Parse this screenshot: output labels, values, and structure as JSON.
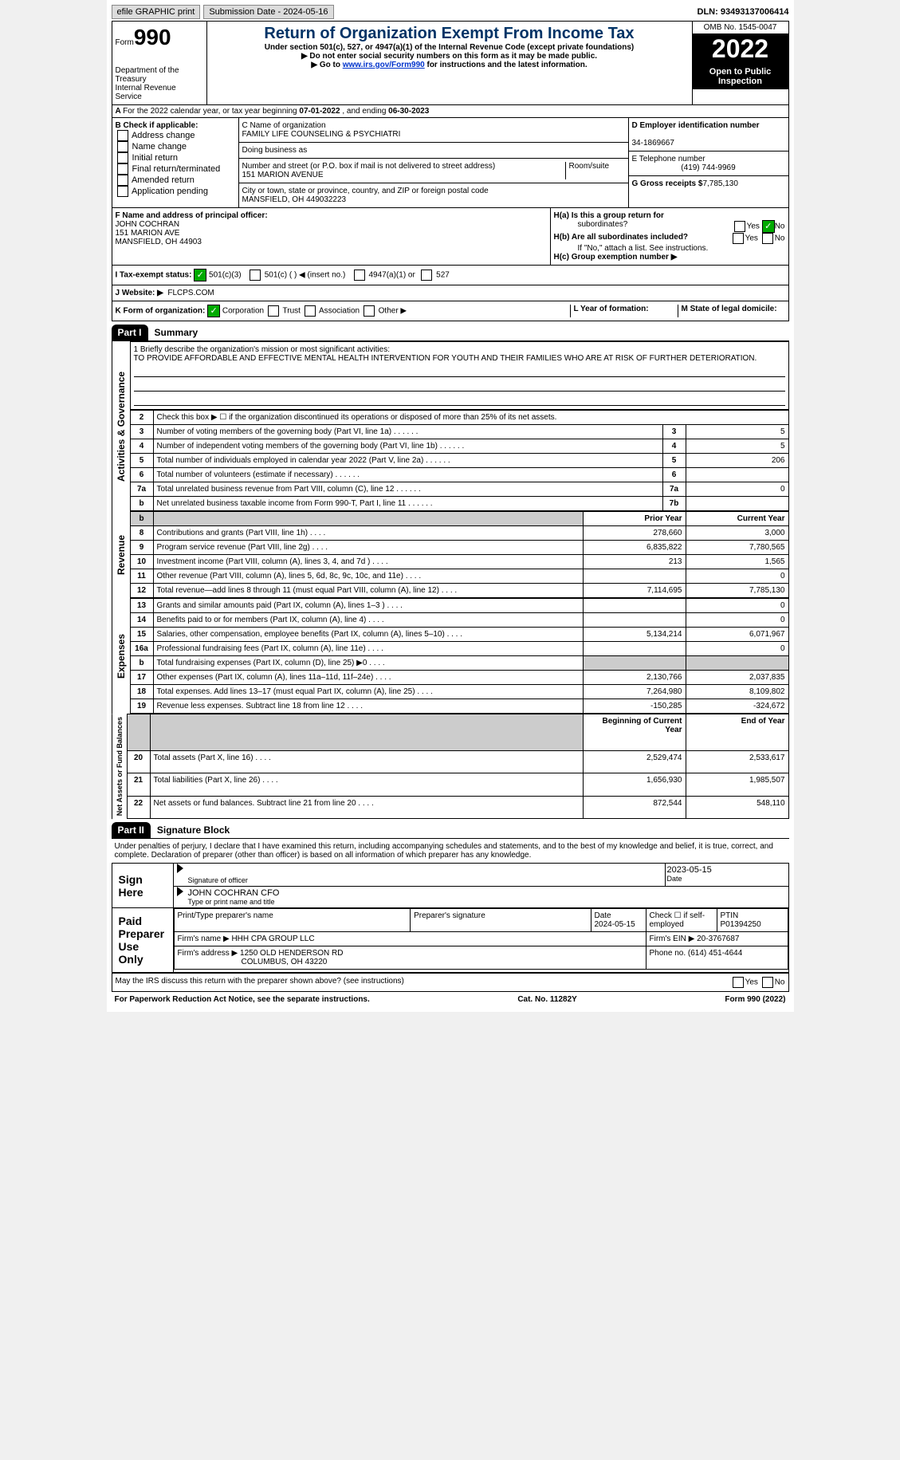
{
  "topbar": {
    "efile": "efile GRAPHIC print",
    "submission": "Submission Date - 2024-05-16",
    "dln": "DLN: 93493137006414"
  },
  "header": {
    "form": "Form",
    "num": "990",
    "dept": "Department of the Treasury",
    "irs": "Internal Revenue Service",
    "title": "Return of Organization Exempt From Income Tax",
    "sub1": "Under section 501(c), 527, or 4947(a)(1) of the Internal Revenue Code (except private foundations)",
    "sub2": "▶ Do not enter social security numbers on this form as it may be made public.",
    "sub3": "▶ Go to ",
    "link": "www.irs.gov/Form990",
    "sub3b": " for instructions and the latest information.",
    "omb": "OMB No. 1545-0047",
    "year": "2022",
    "inspect": "Open to Public Inspection"
  },
  "rowA": {
    "text": "For the 2022 calendar year, or tax year beginning ",
    "begin": "07-01-2022",
    "mid": " , and ending ",
    "end": "06-30-2023"
  },
  "boxB": {
    "head": "B Check if applicable:",
    "items": [
      "Address change",
      "Name change",
      "Initial return",
      "Final return/terminated",
      "Amended return",
      "Application pending"
    ]
  },
  "boxC": {
    "lbl1": "C Name of organization",
    "name": "FAMILY LIFE COUNSELING & PSYCHIATRI",
    "dba": "Doing business as",
    "addr_lbl": "Number and street (or P.O. box if mail is not delivered to street address)",
    "addr": "151 MARION AVENUE",
    "room": "Room/suite",
    "city_lbl": "City or town, state or province, country, and ZIP or foreign postal code",
    "city": "MANSFIELD, OH  449032223"
  },
  "boxD": {
    "lbl": "D Employer identification number",
    "ein": "34-1869667",
    "tel_lbl": "E Telephone number",
    "tel": "(419) 744-9969",
    "gross_lbl": "G Gross receipts $",
    "gross": "7,785,130"
  },
  "boxF": {
    "lbl": "F Name and address of principal officer:",
    "name": "JOHN COCHRAN",
    "addr": "151 MARION AVE",
    "city": "MANSFIELD, OH  44903"
  },
  "boxH": {
    "a": "H(a)  Is this a group return for",
    "a2": "subordinates?",
    "b": "H(b)  Are all subordinates included?",
    "b2": "If \"No,\" attach a list. See instructions.",
    "c": "H(c)  Group exemption number ▶",
    "yes": "Yes",
    "no": "No"
  },
  "taxI": {
    "lbl": "I  Tax-exempt status:",
    "a": "501(c)(3)",
    "b": "501(c) (  ) ◀ (insert no.)",
    "c": "4947(a)(1) or",
    "d": "527"
  },
  "rowJ": {
    "lbl": "J  Website: ▶",
    "val": "FLCPS.COM"
  },
  "rowK": {
    "lbl": "K Form of organization:",
    "a": "Corporation",
    "b": "Trust",
    "c": "Association",
    "d": "Other ▶",
    "l": "L Year of formation:",
    "m": "M State of legal domicile:"
  },
  "part1": {
    "num": "Part I",
    "title": "Summary"
  },
  "mission": {
    "lbl": "1   Briefly describe the organization's mission or most significant activities:",
    "text": "TO PROVIDE AFFORDABLE AND EFFECTIVE MENTAL HEALTH INTERVENTION FOR YOUTH AND THEIR FAMILIES WHO ARE AT RISK OF FURTHER DETERIORATION."
  },
  "gov": {
    "v": "Activities & Governance",
    "l2": "Check this box ▶ ☐ if the organization discontinued its operations or disposed of more than 25% of its net assets.",
    "rows": [
      {
        "n": "3",
        "d": "Number of voting members of the governing body (Part VI, line 1a)",
        "b": "3",
        "v": "5"
      },
      {
        "n": "4",
        "d": "Number of independent voting members of the governing body (Part VI, line 1b)",
        "b": "4",
        "v": "5"
      },
      {
        "n": "5",
        "d": "Total number of individuals employed in calendar year 2022 (Part V, line 2a)",
        "b": "5",
        "v": "206"
      },
      {
        "n": "6",
        "d": "Total number of volunteers (estimate if necessary)",
        "b": "6",
        "v": ""
      },
      {
        "n": "7a",
        "d": "Total unrelated business revenue from Part VIII, column (C), line 12",
        "b": "7a",
        "v": "0"
      },
      {
        "n": "b",
        "d": "Net unrelated business taxable income from Form 990-T, Part I, line 11",
        "b": "7b",
        "v": ""
      }
    ]
  },
  "rev": {
    "v": "Revenue",
    "hdr_prior": "Prior Year",
    "hdr_curr": "Current Year",
    "rows": [
      {
        "n": "8",
        "d": "Contributions and grants (Part VIII, line 1h)",
        "p": "278,660",
        "c": "3,000"
      },
      {
        "n": "9",
        "d": "Program service revenue (Part VIII, line 2g)",
        "p": "6,835,822",
        "c": "7,780,565"
      },
      {
        "n": "10",
        "d": "Investment income (Part VIII, column (A), lines 3, 4, and 7d )",
        "p": "213",
        "c": "1,565"
      },
      {
        "n": "11",
        "d": "Other revenue (Part VIII, column (A), lines 5, 6d, 8c, 9c, 10c, and 11e)",
        "p": "",
        "c": "0"
      },
      {
        "n": "12",
        "d": "Total revenue—add lines 8 through 11 (must equal Part VIII, column (A), line 12)",
        "p": "7,114,695",
        "c": "7,785,130"
      }
    ]
  },
  "exp": {
    "v": "Expenses",
    "rows": [
      {
        "n": "13",
        "d": "Grants and similar amounts paid (Part IX, column (A), lines 1–3 )",
        "p": "",
        "c": "0"
      },
      {
        "n": "14",
        "d": "Benefits paid to or for members (Part IX, column (A), line 4)",
        "p": "",
        "c": "0"
      },
      {
        "n": "15",
        "d": "Salaries, other compensation, employee benefits (Part IX, column (A), lines 5–10)",
        "p": "5,134,214",
        "c": "6,071,967"
      },
      {
        "n": "16a",
        "d": "Professional fundraising fees (Part IX, column (A), line 11e)",
        "p": "",
        "c": "0"
      },
      {
        "n": "b",
        "d": "Total fundraising expenses (Part IX, column (D), line 25) ▶0",
        "p": "shade",
        "c": "shade"
      },
      {
        "n": "17",
        "d": "Other expenses (Part IX, column (A), lines 11a–11d, 11f–24e)",
        "p": "2,130,766",
        "c": "2,037,835"
      },
      {
        "n": "18",
        "d": "Total expenses. Add lines 13–17 (must equal Part IX, column (A), line 25)",
        "p": "7,264,980",
        "c": "8,109,802"
      },
      {
        "n": "19",
        "d": "Revenue less expenses. Subtract line 18 from line 12",
        "p": "-150,285",
        "c": "-324,672"
      }
    ]
  },
  "net": {
    "v": "Net Assets or Fund Balances",
    "hdr_beg": "Beginning of Current Year",
    "hdr_end": "End of Year",
    "rows": [
      {
        "n": "20",
        "d": "Total assets (Part X, line 16)",
        "p": "2,529,474",
        "c": "2,533,617"
      },
      {
        "n": "21",
        "d": "Total liabilities (Part X, line 26)",
        "p": "1,656,930",
        "c": "1,985,507"
      },
      {
        "n": "22",
        "d": "Net assets or fund balances. Subtract line 21 from line 20",
        "p": "872,544",
        "c": "548,110"
      }
    ]
  },
  "part2": {
    "num": "Part II",
    "title": "Signature Block"
  },
  "decl": "Under penalties of perjury, I declare that I have examined this return, including accompanying schedules and statements, and to the best of my knowledge and belief, it is true, correct, and complete. Declaration of preparer (other than officer) is based on all information of which preparer has any knowledge.",
  "sign": {
    "here": "Sign Here",
    "sig": "Signature of officer",
    "date": "Date",
    "dval": "2023-05-15",
    "name": "JOHN COCHRAN CFO",
    "type": "Type or print name and title"
  },
  "prep": {
    "lbl": "Paid Preparer Use Only",
    "h1": "Print/Type preparer's name",
    "h2": "Preparer's signature",
    "h3": "Date",
    "h3v": "2024-05-15",
    "h4": "Check ☐ if self-employed",
    "h5": "PTIN",
    "ptin": "P01394250",
    "firm_lbl": "Firm's name    ▶",
    "firm": "HHH CPA GROUP LLC",
    "ein_lbl": "Firm's EIN ▶",
    "ein": "20-3767687",
    "addr_lbl": "Firm's address ▶",
    "addr": "1250 OLD HENDERSON RD",
    "addr2": "COLUMBUS, OH  43220",
    "ph_lbl": "Phone no.",
    "ph": "(614) 451-4644"
  },
  "may": "May the IRS discuss this return with the preparer shown above? (see instructions)",
  "footer": {
    "l": "For Paperwork Reduction Act Notice, see the separate instructions.",
    "c": "Cat. No. 11282Y",
    "r": "Form 990 (2022)"
  }
}
